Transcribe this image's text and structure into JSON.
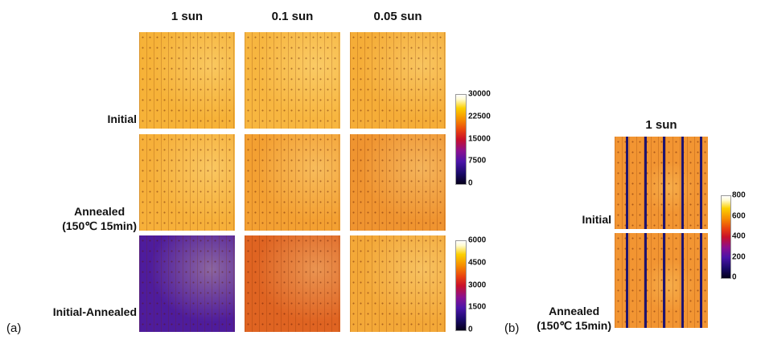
{
  "panel_a": {
    "label": "(a)",
    "columns": [
      "1 sun",
      "0.1 sun",
      "0.05 sun"
    ],
    "rows": [
      {
        "label": [
          "Initial"
        ],
        "colors": [
          "#f6b238",
          "#f7b640",
          "#f5ad38"
        ]
      },
      {
        "label": [
          "Annealed",
          "(150℃ 15min)"
        ],
        "colors": [
          "#f6b03a",
          "#f3a032",
          "#ef9430"
        ]
      },
      {
        "label": [
          "Initial-Annealed"
        ],
        "colors": [
          "#4e1c9c",
          "#df6422",
          "#f3a838"
        ]
      }
    ],
    "colorbars": [
      {
        "ticks": [
          "30000",
          "22500",
          "15000",
          "7500",
          "0"
        ]
      },
      {
        "ticks": [
          "6000",
          "4500",
          "3000",
          "1500",
          "0"
        ]
      }
    ]
  },
  "panel_b": {
    "label": "(b)",
    "column": "1 sun",
    "rows": [
      {
        "label": [
          "Initial"
        ],
        "color": "#f29532"
      },
      {
        "label": [
          "Annealed",
          "(150℃ 15min)"
        ],
        "color": "#f29532"
      }
    ],
    "colorbar": {
      "ticks": [
        "800",
        "600",
        "400",
        "200",
        "0"
      ]
    }
  }
}
